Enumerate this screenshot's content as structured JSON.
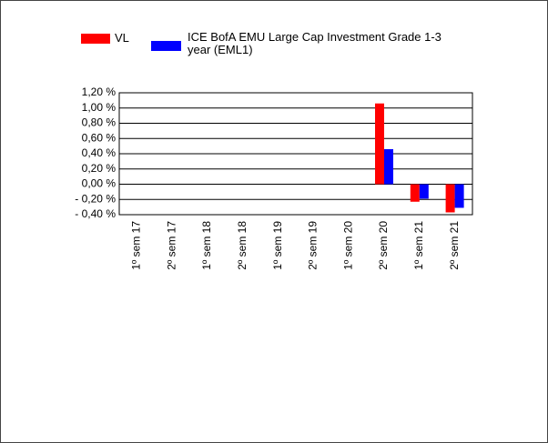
{
  "chart_data": {
    "type": "bar",
    "categories": [
      "1º sem 17",
      "2º sem 17",
      "1º sem 18",
      "2º sem 18",
      "1º sem 19",
      "2º sem 19",
      "1º sem 20",
      "2º sem 20",
      "1º sem 21",
      "2º sem 21"
    ],
    "series": [
      {
        "name": "VL",
        "color": "#ff0000",
        "values": [
          null,
          null,
          null,
          null,
          null,
          null,
          null,
          1.06,
          -0.23,
          -0.37
        ]
      },
      {
        "name": "ICE BofA EMU Large Cap Investment Grade 1-3 year (EML1)",
        "color": "#0000ff",
        "values": [
          null,
          null,
          null,
          null,
          null,
          null,
          null,
          0.46,
          -0.19,
          -0.31
        ]
      }
    ],
    "ylim": [
      -0.4,
      1.2
    ],
    "yticks": [
      {
        "value": 1.2,
        "label": "1,20 %"
      },
      {
        "value": 1.0,
        "label": "1,00 %"
      },
      {
        "value": 0.8,
        "label": "0,80 %"
      },
      {
        "value": 0.6,
        "label": "0,60 %"
      },
      {
        "value": 0.4,
        "label": "0,40 %"
      },
      {
        "value": 0.2,
        "label": "0,20 %"
      },
      {
        "value": 0.0,
        "label": "0,00 %"
      },
      {
        "value": -0.2,
        "label": "- 0,20 %"
      },
      {
        "value": -0.4,
        "label": "- 0,40 %"
      }
    ],
    "grid": true
  }
}
